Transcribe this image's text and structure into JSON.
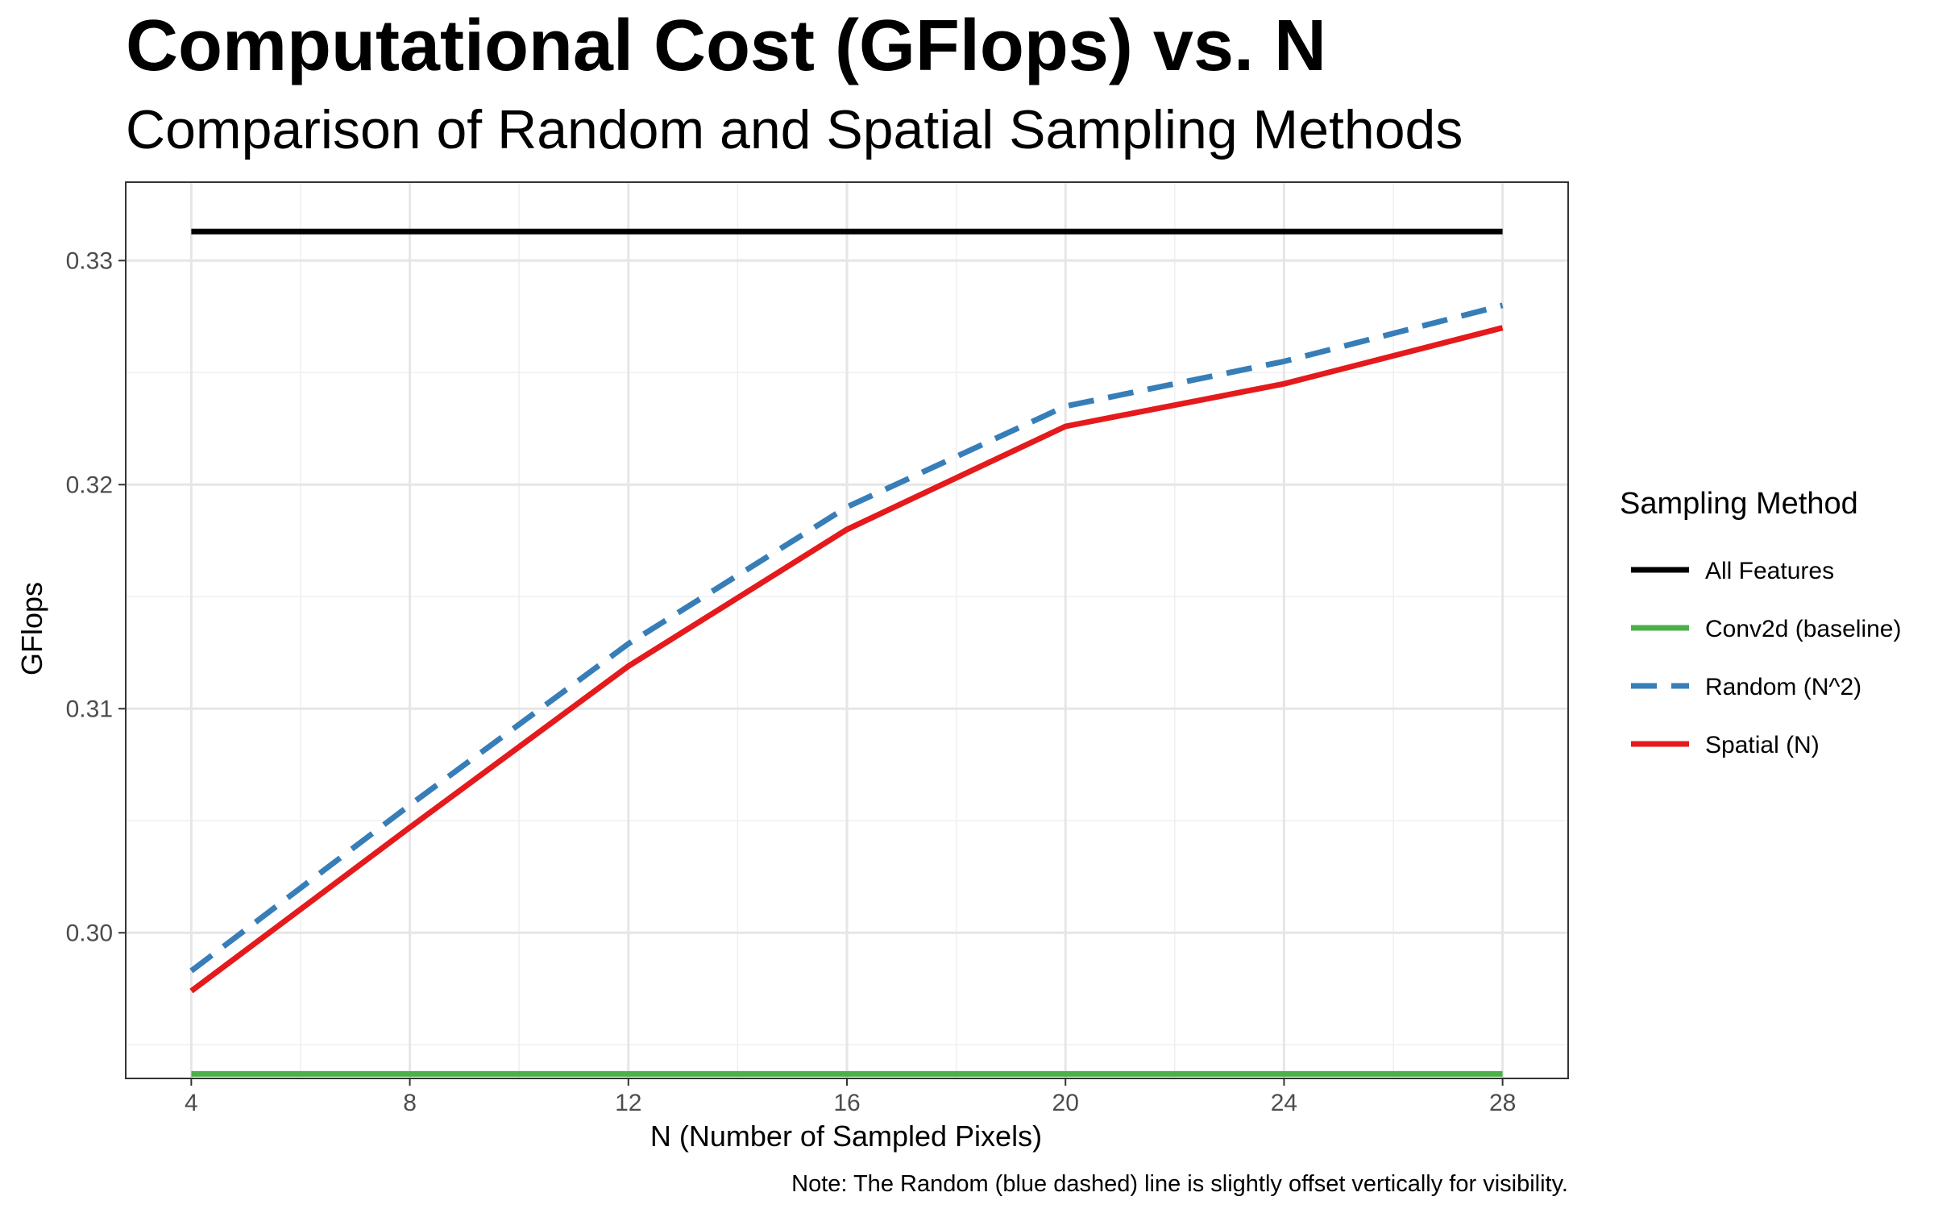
{
  "chart_data": {
    "type": "line",
    "title": "Computational Cost (GFlops) vs. N",
    "subtitle": "Comparison of Random and Spatial Sampling Methods",
    "xlabel": "N (Number of Sampled Pixels)",
    "ylabel": "GFlops",
    "x": [
      4,
      8,
      12,
      16,
      20,
      24,
      28
    ],
    "xlim": [
      2.8,
      29.2
    ],
    "ylim": [
      0.2935,
      0.3335
    ],
    "x_ticks": [
      4,
      8,
      12,
      16,
      20,
      24,
      28
    ],
    "y_ticks": [
      0.3,
      0.31,
      0.32,
      0.33
    ],
    "x_tick_labels": [
      "4",
      "8",
      "12",
      "16",
      "20",
      "24",
      "28"
    ],
    "y_tick_labels": [
      "0.30",
      "0.31",
      "0.32",
      "0.33"
    ],
    "grid": true,
    "legend_title": "Sampling Method",
    "legend_position": "right",
    "series": [
      {
        "name": "All Features",
        "color": "#000000",
        "dash": "solid",
        "values": [
          0.3313,
          0.3313,
          0.3313,
          0.3313,
          0.3313,
          0.3313,
          0.3313
        ]
      },
      {
        "name": "Conv2d (baseline)",
        "color": "#4daf4a",
        "dash": "solid",
        "values": [
          0.2937,
          0.2937,
          0.2937,
          0.2937,
          0.2937,
          0.2937,
          0.2937
        ]
      },
      {
        "name": "Random (N^2)",
        "color": "#377eb8",
        "dash": "dashed",
        "values": [
          0.2983,
          0.3057,
          0.3129,
          0.319,
          0.3235,
          0.3255,
          0.328
        ]
      },
      {
        "name": "Spatial (N)",
        "color": "#e41a1c",
        "dash": "solid",
        "values": [
          0.2974,
          0.3047,
          0.3119,
          0.318,
          0.3226,
          0.3245,
          0.327
        ]
      }
    ],
    "note": "Note: The Random (blue dashed) line is slightly offset vertically for visibility."
  }
}
